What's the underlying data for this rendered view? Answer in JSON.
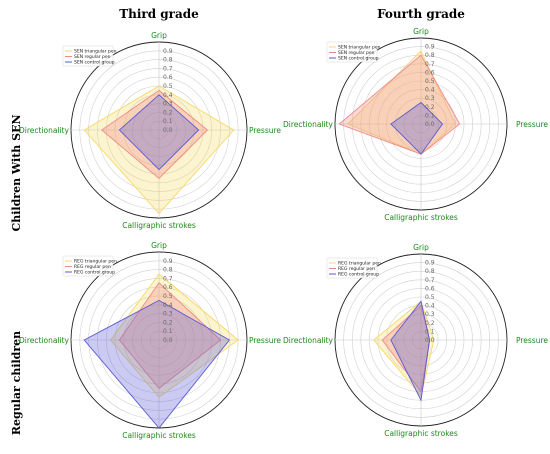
{
  "column_titles": [
    "Third grade",
    "Fourth grade"
  ],
  "row_titles": [
    "Children With SEN",
    "Regular children"
  ],
  "colors": {
    "triangular": "#f5d96a",
    "regular": "#f08a8a",
    "control": "#5a5ad8",
    "axis_label": "#1a8a1a"
  },
  "chart_data": [
    {
      "type": "radar",
      "axes": [
        "Grip",
        "Pressure",
        "Calligraphic strokes",
        "Directionality"
      ],
      "ticks": [
        "0.0",
        "0.1",
        "0.2",
        "0.3",
        "0.4",
        "0.5",
        "0.6",
        "0.7",
        "0.8",
        "0.9"
      ],
      "rmax": 1.0,
      "series": [
        {
          "name": "SEN triangular pen",
          "values": [
            0.5,
            0.85,
            0.95,
            0.85
          ]
        },
        {
          "name": "SEN regular pen",
          "values": [
            0.45,
            0.55,
            0.55,
            0.65
          ]
        },
        {
          "name": "SEN control group",
          "values": [
            0.4,
            0.45,
            0.45,
            0.45
          ]
        }
      ],
      "legend": "top-left"
    },
    {
      "type": "radar",
      "axes": [
        "Grip",
        "Pressure",
        "Calligraphic strokes",
        "Directionality"
      ],
      "ticks": [
        "0.0",
        "0.1",
        "0.2",
        "0.3",
        "0.4",
        "0.5",
        "0.6",
        "0.7",
        "0.8",
        "0.9"
      ],
      "rmax": 1.0,
      "series": [
        {
          "name": "SEN triangular pen",
          "values": [
            0.85,
            0.4,
            0.35,
            0.85
          ]
        },
        {
          "name": "SEN regular pen",
          "values": [
            0.8,
            0.45,
            0.35,
            0.95
          ]
        },
        {
          "name": "SEN control group",
          "values": [
            0.25,
            0.25,
            0.35,
            0.35
          ]
        }
      ],
      "legend": "top-left"
    },
    {
      "type": "radar",
      "axes": [
        "Grip",
        "Pressure",
        "Calligraphic strokes",
        "Directionality"
      ],
      "ticks": [
        "0.0",
        "0.1",
        "0.2",
        "0.3",
        "0.4",
        "0.5",
        "0.6",
        "0.7",
        "0.8",
        "0.9"
      ],
      "rmax": 1.0,
      "series": [
        {
          "name": "REG triangular pen",
          "values": [
            0.75,
            0.9,
            0.65,
            0.55
          ]
        },
        {
          "name": "REG regular pen",
          "values": [
            0.65,
            0.7,
            0.55,
            0.45
          ]
        },
        {
          "name": "REG control group",
          "values": [
            0.45,
            0.8,
            1.0,
            0.85
          ]
        }
      ],
      "legend": "top-left"
    },
    {
      "type": "radar",
      "axes": [
        "Grip",
        "Pressure",
        "Calligraphic strokes",
        "Directionality"
      ],
      "ticks": [
        "0.0",
        "0.1",
        "0.2",
        "0.3",
        "0.4",
        "0.5",
        "0.6",
        "0.7",
        "0.8",
        "0.9"
      ],
      "rmax": 1.0,
      "series": [
        {
          "name": "REG triangular pen",
          "values": [
            0.45,
            0.15,
            0.65,
            0.55
          ]
        },
        {
          "name": "REG regular pen",
          "values": [
            0.4,
            0.1,
            0.6,
            0.45
          ]
        },
        {
          "name": "REG control group",
          "values": [
            0.45,
            0.1,
            0.7,
            0.35
          ]
        }
      ],
      "legend": "top-left"
    }
  ]
}
